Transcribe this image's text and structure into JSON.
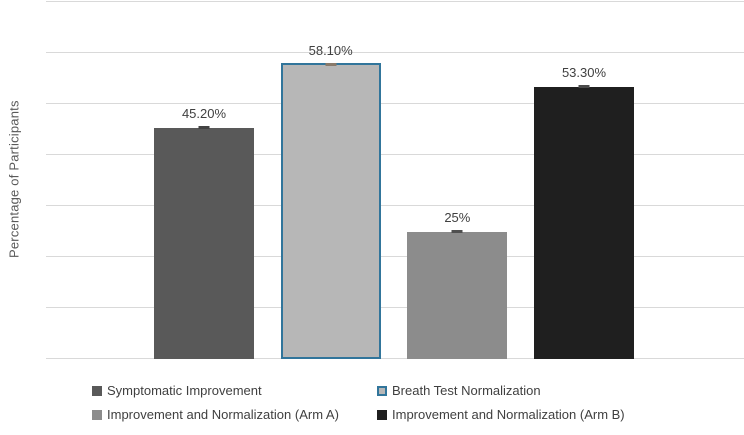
{
  "chart_data": {
    "type": "bar",
    "title": "",
    "xlabel": "",
    "ylabel": "Percentage of Participants",
    "ylim": [
      0,
      70
    ],
    "gridline_step": 10,
    "grid": true,
    "y_tick_labels_visible": false,
    "legend_position": "bottom",
    "background_color": "#ffffff",
    "gridline_color": "#d9d9d9",
    "label_color": "#404040",
    "axis_title_color": "#595959",
    "series": [
      {
        "name": "Symptomatic Improvement",
        "value": 45.2,
        "label": "45.20%",
        "color": "#595959",
        "border_color": null,
        "tick_color": "#434343"
      },
      {
        "name": "Breath Test Normalization",
        "value": 58.1,
        "label": "58.10%",
        "color": "#b7b7b7",
        "border_color": "#31759b",
        "tick_color": "#8a7a6a"
      },
      {
        "name": "Improvement and Normalization (Arm A)",
        "value": 25,
        "label": "25%",
        "color": "#8c8c8c",
        "border_color": null,
        "tick_color": "#4f4f4f"
      },
      {
        "name": "Improvement and Normalization (Arm B)",
        "value": 53.3,
        "label": "53.30%",
        "color": "#1f1f1f",
        "border_color": null,
        "tick_color": "#4a4a4a"
      }
    ]
  }
}
